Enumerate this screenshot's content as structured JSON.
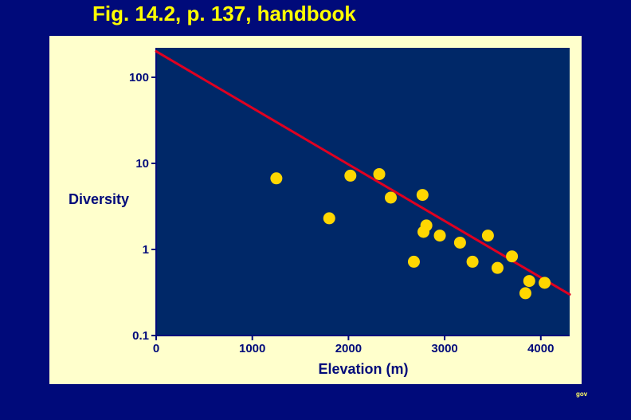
{
  "slide": {
    "title": "Fig. 14.2, p. 137, handbook",
    "footer_mark": "gov"
  },
  "colors": {
    "background": "#000a7a",
    "panel": "#ffffcc",
    "plot_area": "#002868",
    "points": "#ffd700",
    "trend_line": "#e00020",
    "title": "#ffff00"
  },
  "chart_data": {
    "type": "scatter",
    "xlabel": "Elevation (m)",
    "ylabel": "Diversity",
    "xlim": [
      0,
      4300
    ],
    "ylim": [
      0.1,
      220
    ],
    "y_scale": "log",
    "x_ticks": [
      0,
      1000,
      2000,
      3000,
      4000
    ],
    "x_tick_labels": [
      "0",
      "1000",
      "2000",
      "3000",
      "4000"
    ],
    "y_ticks": [
      0.1,
      1,
      10,
      100
    ],
    "y_tick_labels": [
      "0.1",
      "1",
      "10",
      "100"
    ],
    "grid": false,
    "points": [
      {
        "x": 1250,
        "y": 6.7
      },
      {
        "x": 1800,
        "y": 2.3
      },
      {
        "x": 2020,
        "y": 7.2
      },
      {
        "x": 2320,
        "y": 7.5
      },
      {
        "x": 2440,
        "y": 4.0
      },
      {
        "x": 2680,
        "y": 0.72
      },
      {
        "x": 2770,
        "y": 4.3
      },
      {
        "x": 2780,
        "y": 1.6
      },
      {
        "x": 2810,
        "y": 1.9
      },
      {
        "x": 2950,
        "y": 1.45
      },
      {
        "x": 3160,
        "y": 1.2
      },
      {
        "x": 3290,
        "y": 0.72
      },
      {
        "x": 3450,
        "y": 1.45
      },
      {
        "x": 3550,
        "y": 0.61
      },
      {
        "x": 3700,
        "y": 0.83
      },
      {
        "x": 3840,
        "y": 0.31
      },
      {
        "x": 3880,
        "y": 0.43
      },
      {
        "x": 4040,
        "y": 0.41
      }
    ],
    "trend_line": {
      "x": [
        0,
        4300
      ],
      "y": [
        200,
        0.3
      ]
    }
  }
}
